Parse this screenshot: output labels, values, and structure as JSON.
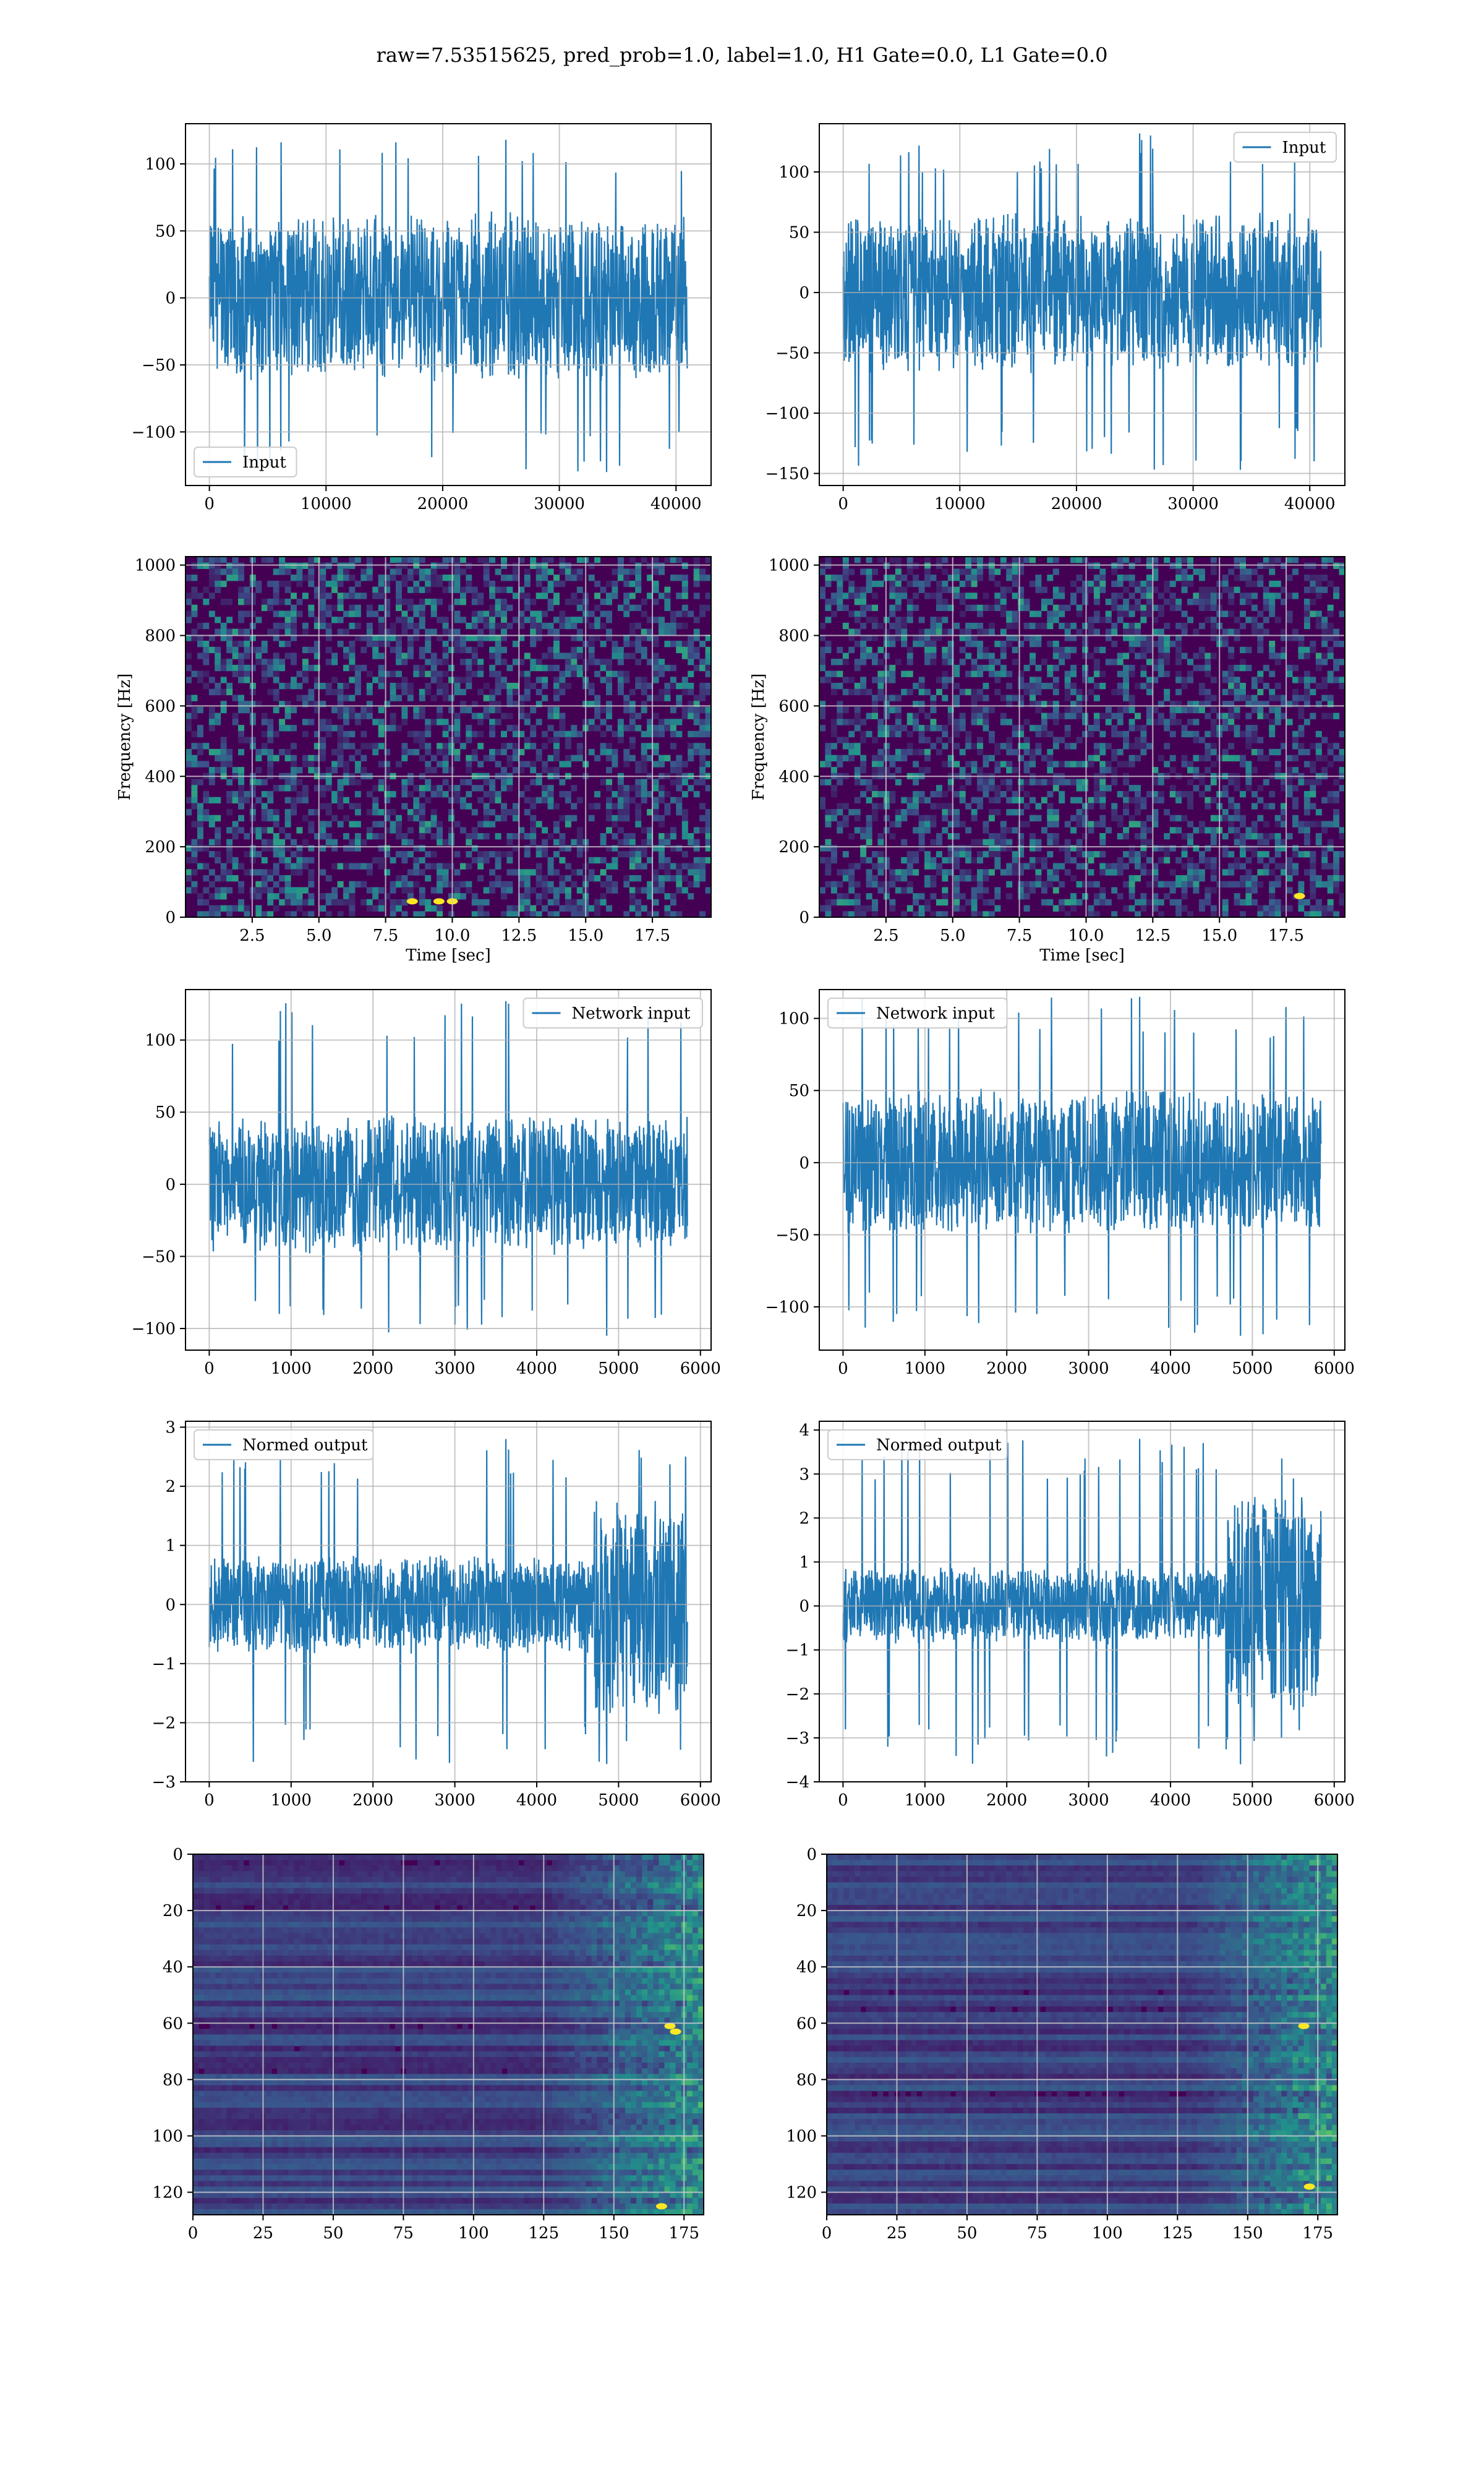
{
  "title": "raw=7.53515625, pred_prob=1.0, label=1.0, H1 Gate=0.0, L1 Gate=0.0",
  "colors": {
    "line": "#1f77b4",
    "grid": "#b0b0b0",
    "viridis_low": "#440154",
    "viridis_mid": "#21918c",
    "viridis_high": "#fde725"
  },
  "chart_data": [
    {
      "id": "h1-input",
      "type": "line",
      "title": "",
      "xlabel": "",
      "ylabel": "",
      "xlim": [
        -2048,
        43008
      ],
      "ylim": [
        -140,
        130
      ],
      "xticks": [
        0,
        10000,
        20000,
        30000,
        40000
      ],
      "xticklabels": [
        "0",
        "10000",
        "20000",
        "30000",
        "40000"
      ],
      "yticks": [
        -100,
        -50,
        0,
        50,
        100
      ],
      "yticklabels": [
        "−100",
        "−50",
        "0",
        "50",
        "100"
      ],
      "grid": true,
      "legend": "lower-left",
      "series": [
        {
          "name": "Input",
          "x_range": [
            0,
            40960
          ],
          "center": 0,
          "amplitude": 65,
          "peak_min": -130,
          "peak_max": 118
        }
      ]
    },
    {
      "id": "l1-input",
      "type": "line",
      "title": "",
      "xlabel": "",
      "ylabel": "",
      "xlim": [
        -2048,
        43008
      ],
      "ylim": [
        -160,
        140
      ],
      "xticks": [
        0,
        10000,
        20000,
        30000,
        40000
      ],
      "xticklabels": [
        "0",
        "10000",
        "20000",
        "30000",
        "40000"
      ],
      "yticks": [
        -150,
        -100,
        -50,
        0,
        50,
        100
      ],
      "yticklabels": [
        "−150",
        "−100",
        "−50",
        "0",
        "50",
        "100"
      ],
      "grid": true,
      "legend": "upper-right",
      "series": [
        {
          "name": "Input",
          "x_range": [
            0,
            40960
          ],
          "center": 0,
          "amplitude": 68,
          "peak_min": -147,
          "peak_max": 132
        }
      ]
    },
    {
      "id": "h1-spectrogram",
      "type": "heatmap",
      "title": "",
      "xlabel": "Time [sec]",
      "ylabel": "Frequency [Hz]",
      "xlim": [
        0,
        19.7
      ],
      "ylim": [
        0,
        1024
      ],
      "xticks": [
        2.5,
        5.0,
        7.5,
        10.0,
        12.5,
        15.0,
        17.5
      ],
      "xticklabels": [
        "2.5",
        "5.0",
        "7.5",
        "10.0",
        "12.5",
        "15.0",
        "17.5"
      ],
      "yticks": [
        0,
        200,
        400,
        600,
        800,
        1000
      ],
      "yticklabels": [
        "0",
        "200",
        "400",
        "600",
        "800",
        "1000"
      ],
      "grid": true,
      "colormap": "viridis",
      "bright_spots": [
        [
          8.5,
          45
        ],
        [
          9.5,
          45
        ],
        [
          10.0,
          45
        ]
      ]
    },
    {
      "id": "l1-spectrogram",
      "type": "heatmap",
      "title": "",
      "xlabel": "Time [sec]",
      "ylabel": "Frequency [Hz]",
      "xlim": [
        0,
        19.7
      ],
      "ylim": [
        0,
        1024
      ],
      "xticks": [
        2.5,
        5.0,
        7.5,
        10.0,
        12.5,
        15.0,
        17.5
      ],
      "xticklabels": [
        "2.5",
        "5.0",
        "7.5",
        "10.0",
        "12.5",
        "15.0",
        "17.5"
      ],
      "yticks": [
        0,
        200,
        400,
        600,
        800,
        1000
      ],
      "yticklabels": [
        "0",
        "200",
        "400",
        "600",
        "800",
        "1000"
      ],
      "grid": true,
      "colormap": "viridis",
      "bright_spots": [
        [
          18.0,
          60
        ]
      ]
    },
    {
      "id": "h1-network-input",
      "type": "line",
      "title": "",
      "xlabel": "",
      "ylabel": "",
      "xlim": [
        -290,
        6130
      ],
      "ylim": [
        -115,
        135
      ],
      "xticks": [
        0,
        1000,
        2000,
        3000,
        4000,
        5000,
        6000
      ],
      "xticklabels": [
        "0",
        "1000",
        "2000",
        "3000",
        "4000",
        "5000",
        "6000"
      ],
      "yticks": [
        -100,
        -50,
        0,
        50,
        100
      ],
      "yticklabels": [
        "−100",
        "−50",
        "0",
        "50",
        "100"
      ],
      "grid": true,
      "legend": "upper-right",
      "series": [
        {
          "name": "Network input",
          "x_range": [
            0,
            5840
          ],
          "center": 0,
          "amplitude": 50,
          "peak_min": -105,
          "peak_max": 127
        }
      ]
    },
    {
      "id": "l1-network-input",
      "type": "line",
      "title": "",
      "xlabel": "",
      "ylabel": "",
      "xlim": [
        -290,
        6130
      ],
      "ylim": [
        -130,
        120
      ],
      "xticks": [
        0,
        1000,
        2000,
        3000,
        4000,
        5000,
        6000
      ],
      "xticklabels": [
        "0",
        "1000",
        "2000",
        "3000",
        "4000",
        "5000",
        "6000"
      ],
      "yticks": [
        -100,
        -50,
        0,
        50,
        100
      ],
      "yticklabels": [
        "−100",
        "−50",
        "0",
        "50",
        "100"
      ],
      "grid": true,
      "legend": "upper-left",
      "series": [
        {
          "name": "Network input",
          "x_range": [
            0,
            5840
          ],
          "center": 0,
          "amplitude": 52,
          "peak_min": -120,
          "peak_max": 115
        }
      ]
    },
    {
      "id": "h1-normed-output",
      "type": "line",
      "title": "",
      "xlabel": "",
      "ylabel": "",
      "xlim": [
        -290,
        6130
      ],
      "ylim": [
        -3.0,
        3.1
      ],
      "xticks": [
        0,
        1000,
        2000,
        3000,
        4000,
        5000,
        6000
      ],
      "xticklabels": [
        "0",
        "1000",
        "2000",
        "3000",
        "4000",
        "5000",
        "6000"
      ],
      "yticks": [
        -3,
        -2,
        -1,
        0,
        1,
        2,
        3
      ],
      "yticklabels": [
        "−3",
        "−2",
        "−1",
        "0",
        "1",
        "2",
        "3"
      ],
      "grid": true,
      "legend": "upper-left",
      "series": [
        {
          "name": "Normed output",
          "x_range": [
            0,
            5840
          ],
          "center": 0,
          "amplitude": 0.85,
          "burst_start": 4700,
          "burst_amplitude": 2.0,
          "peak_min": -2.7,
          "peak_max": 2.8
        }
      ]
    },
    {
      "id": "l1-normed-output",
      "type": "line",
      "title": "",
      "xlabel": "",
      "ylabel": "",
      "xlim": [
        -290,
        6130
      ],
      "ylim": [
        -4.0,
        4.2
      ],
      "xticks": [
        0,
        1000,
        2000,
        3000,
        4000,
        5000,
        6000
      ],
      "xticklabels": [
        "0",
        "1000",
        "2000",
        "3000",
        "4000",
        "5000",
        "6000"
      ],
      "yticks": [
        -4,
        -3,
        -2,
        -1,
        0,
        1,
        2,
        3,
        4
      ],
      "yticklabels": [
        "−4",
        "−3",
        "−2",
        "−1",
        "0",
        "1",
        "2",
        "3",
        "4"
      ],
      "grid": true,
      "legend": "upper-left",
      "series": [
        {
          "name": "Normed output",
          "x_range": [
            0,
            5840
          ],
          "center": 0,
          "amplitude": 0.9,
          "burst_start": 4700,
          "burst_amplitude": 2.6,
          "peak_min": -3.6,
          "peak_max": 3.8
        }
      ]
    },
    {
      "id": "h1-feature-map",
      "type": "heatmap",
      "title": "",
      "xlabel": "",
      "ylabel": "",
      "xlim": [
        0,
        182
      ],
      "ylim": [
        128,
        0
      ],
      "xticks": [
        0,
        25,
        50,
        75,
        100,
        125,
        150,
        175
      ],
      "xticklabels": [
        "0",
        "25",
        "50",
        "75",
        "100",
        "125",
        "150",
        "175"
      ],
      "yticks": [
        0,
        20,
        40,
        60,
        80,
        100,
        120
      ],
      "yticklabels": [
        "0",
        "20",
        "40",
        "60",
        "80",
        "100",
        "120"
      ],
      "grid": true,
      "colormap": "viridis",
      "activity_onset": 125,
      "bright_spots": [
        [
          170,
          61
        ],
        [
          172,
          63
        ],
        [
          167,
          125
        ]
      ]
    },
    {
      "id": "l1-feature-map",
      "type": "heatmap",
      "title": "",
      "xlabel": "",
      "ylabel": "",
      "xlim": [
        0,
        182
      ],
      "ylim": [
        128,
        0
      ],
      "xticks": [
        0,
        25,
        50,
        75,
        100,
        125,
        150,
        175
      ],
      "xticklabels": [
        "0",
        "25",
        "50",
        "75",
        "100",
        "125",
        "150",
        "175"
      ],
      "yticks": [
        0,
        20,
        40,
        60,
        80,
        100,
        120
      ],
      "yticklabels": [
        "0",
        "20",
        "40",
        "60",
        "80",
        "100",
        "120"
      ],
      "grid": true,
      "colormap": "viridis",
      "activity_onset": 130,
      "bright_spots": [
        [
          170,
          61
        ],
        [
          172,
          118
        ]
      ]
    }
  ]
}
